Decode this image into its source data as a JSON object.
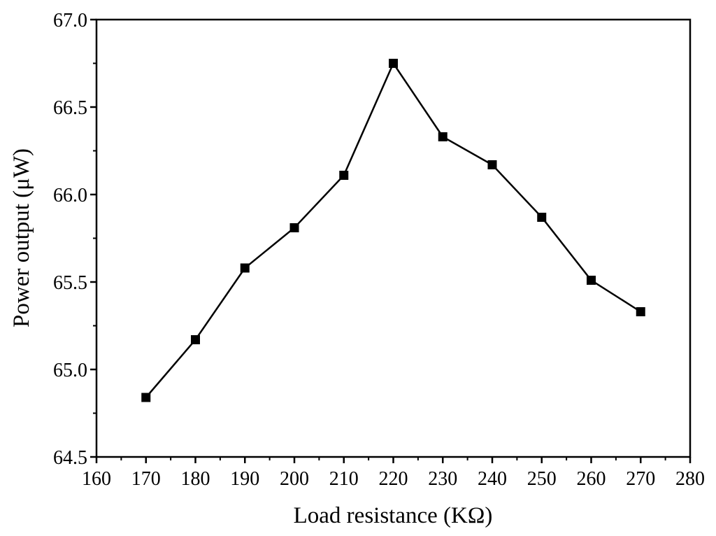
{
  "chart_data": {
    "type": "line",
    "xlabel": "Load resistance (KΩ)",
    "ylabel": "Power output (μW)",
    "xlim": [
      160,
      280
    ],
    "ylim": [
      64.5,
      67.0
    ],
    "x_ticks": [
      160,
      170,
      180,
      190,
      200,
      210,
      220,
      230,
      240,
      250,
      260,
      270,
      280
    ],
    "y_ticks": [
      64.5,
      65.0,
      65.5,
      66.0,
      66.5,
      67.0
    ],
    "x_tick_labels": [
      "160",
      "170",
      "180",
      "190",
      "200",
      "210",
      "220",
      "230",
      "240",
      "250",
      "260",
      "270",
      "280"
    ],
    "y_tick_labels": [
      "64.5",
      "65.0",
      "65.5",
      "66.0",
      "66.5",
      "67.0"
    ],
    "grid": false,
    "marker": "square",
    "line_color": "#000000",
    "series": [
      {
        "x": [
          170,
          180,
          190,
          200,
          210,
          220,
          230,
          240,
          250,
          260,
          270
        ],
        "values": [
          64.84,
          65.17,
          65.58,
          65.81,
          66.11,
          66.75,
          66.33,
          66.17,
          65.87,
          65.51,
          65.33
        ]
      }
    ]
  }
}
